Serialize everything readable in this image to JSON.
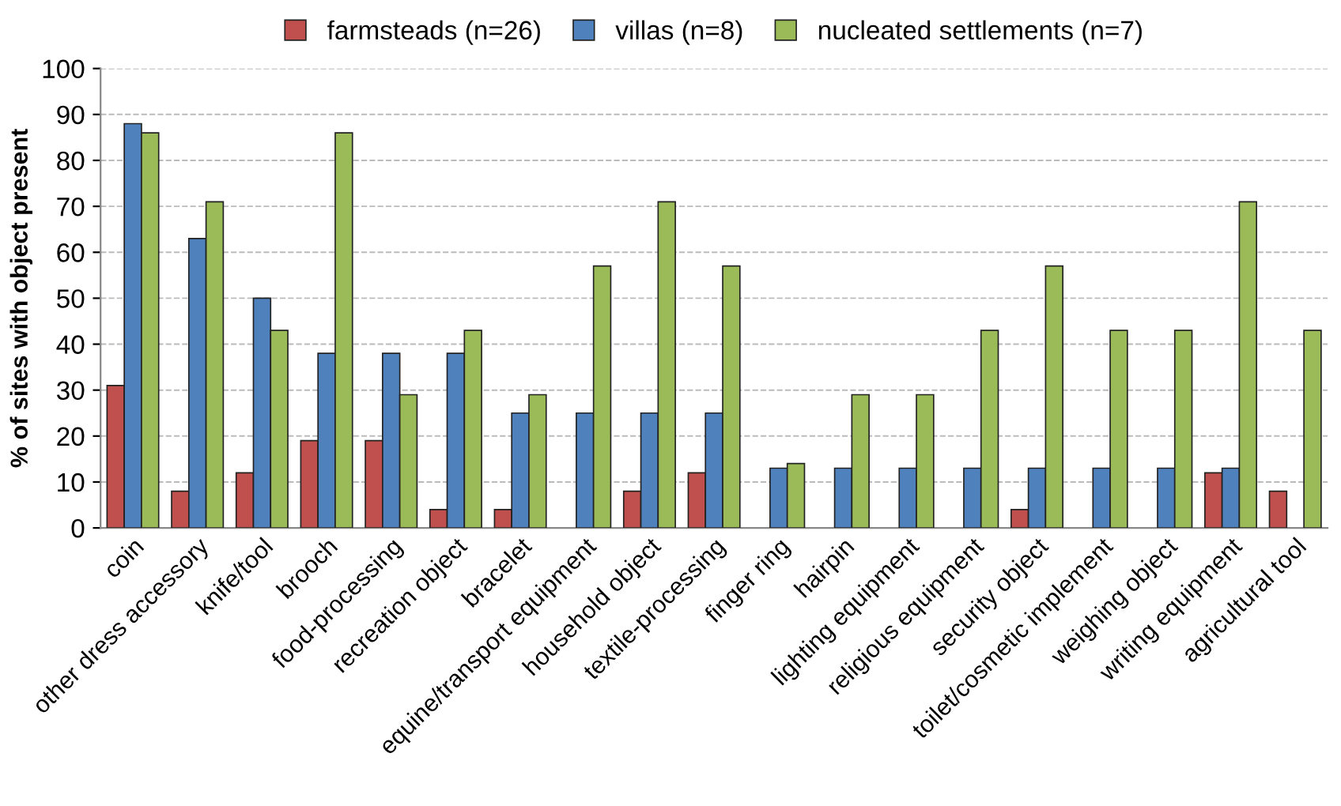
{
  "chart_data": {
    "type": "bar",
    "ylabel": "% of sites with object present",
    "categories": [
      "coin",
      "other dress accessory",
      "knife/tool",
      "brooch",
      "food-processing",
      "recreation object",
      "bracelet",
      "equine/transport equipment",
      "household object",
      "textile-processing",
      "finger ring",
      "hairpin",
      "lighting equipment",
      "religious equipment",
      "security object",
      "toilet/cosmetic implement",
      "weighing object",
      "writing equipment",
      "agricultural tool"
    ],
    "series": [
      {
        "name": "farmsteads (n=26)",
        "color": "#c0504d",
        "values": [
          31,
          8,
          12,
          19,
          19,
          4,
          4,
          null,
          8,
          12,
          null,
          null,
          null,
          null,
          4,
          null,
          null,
          12,
          8
        ]
      },
      {
        "name": "villas (n=8)",
        "color": "#4f81bd",
        "values": [
          88,
          63,
          50,
          38,
          38,
          38,
          25,
          25,
          25,
          25,
          13,
          13,
          13,
          13,
          13,
          13,
          13,
          13,
          null
        ]
      },
      {
        "name": "nucleated settlements (n=7)",
        "color": "#9bbb59",
        "values": [
          86,
          71,
          43,
          86,
          29,
          43,
          29,
          57,
          71,
          57,
          14,
          29,
          29,
          43,
          57,
          43,
          43,
          71,
          43
        ]
      }
    ],
    "ylim": [
      0,
      100
    ],
    "yticks": [
      0,
      10,
      20,
      30,
      40,
      50,
      60,
      70,
      80,
      90,
      100
    ],
    "grid": "y",
    "legend": "top"
  }
}
